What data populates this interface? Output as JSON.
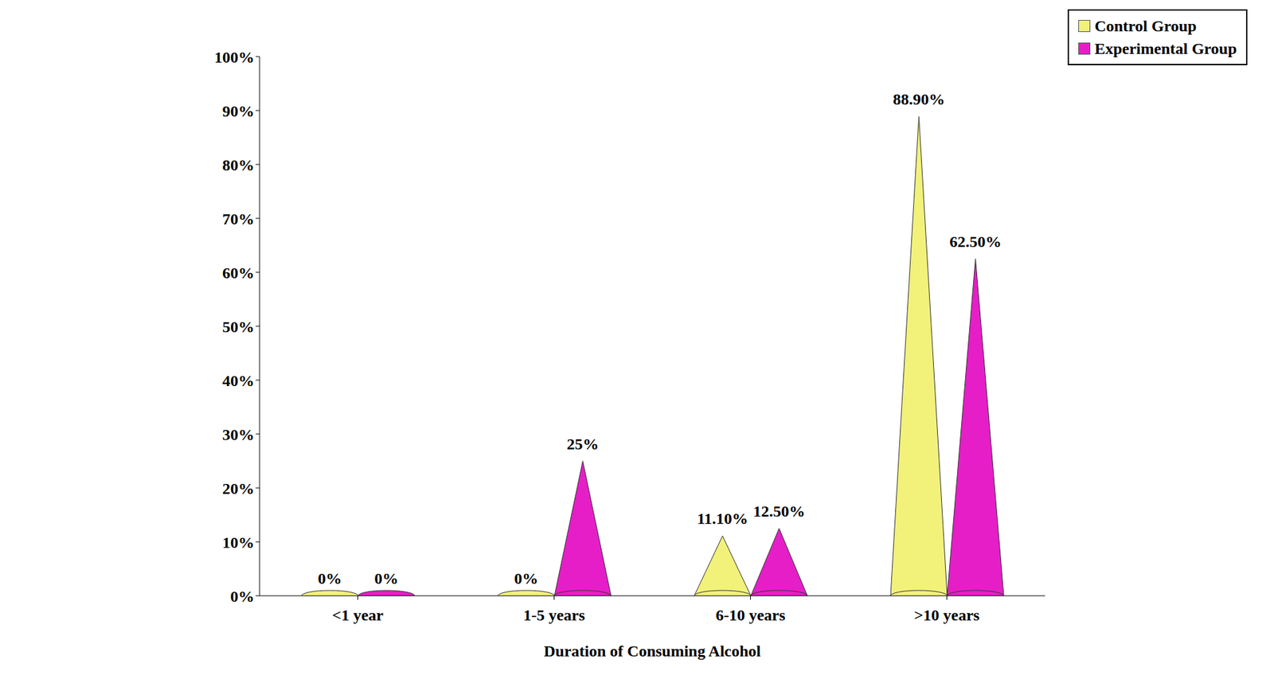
{
  "chart_data": {
    "type": "bar",
    "categories": [
      "<1 year",
      "1-5 years",
      "6-10 years",
      ">10 years"
    ],
    "series": [
      {
        "name": "Control Group",
        "color": "#f2f27a",
        "values": [
          0,
          0,
          11.1,
          88.9
        ],
        "value_labels": [
          "0%",
          "0%",
          "11.10%",
          "88.90%"
        ]
      },
      {
        "name": "Experimental Group",
        "color": "#e61ec8",
        "values": [
          0,
          25,
          12.5,
          62.5
        ],
        "value_labels": [
          "0%",
          "25%",
          "12.50%",
          "62.50%"
        ]
      }
    ],
    "x_label": "Duration of Consuming Alcohol",
    "ylim": [
      0,
      100
    ],
    "yticks": [
      {
        "value": 0,
        "label": "0%"
      },
      {
        "value": 10,
        "label": "10%"
      },
      {
        "value": 20,
        "label": "20%"
      },
      {
        "value": 30,
        "label": "30%"
      },
      {
        "value": 40,
        "label": "40%"
      },
      {
        "value": 50,
        "label": "50%"
      },
      {
        "value": 60,
        "label": "60%"
      },
      {
        "value": 70,
        "label": "70%"
      },
      {
        "value": 80,
        "label": "80%"
      },
      {
        "value": 90,
        "label": "90%"
      },
      {
        "value": 100,
        "label": "100%"
      }
    ],
    "grid": false,
    "legend": "upper right",
    "data_labels": true
  }
}
